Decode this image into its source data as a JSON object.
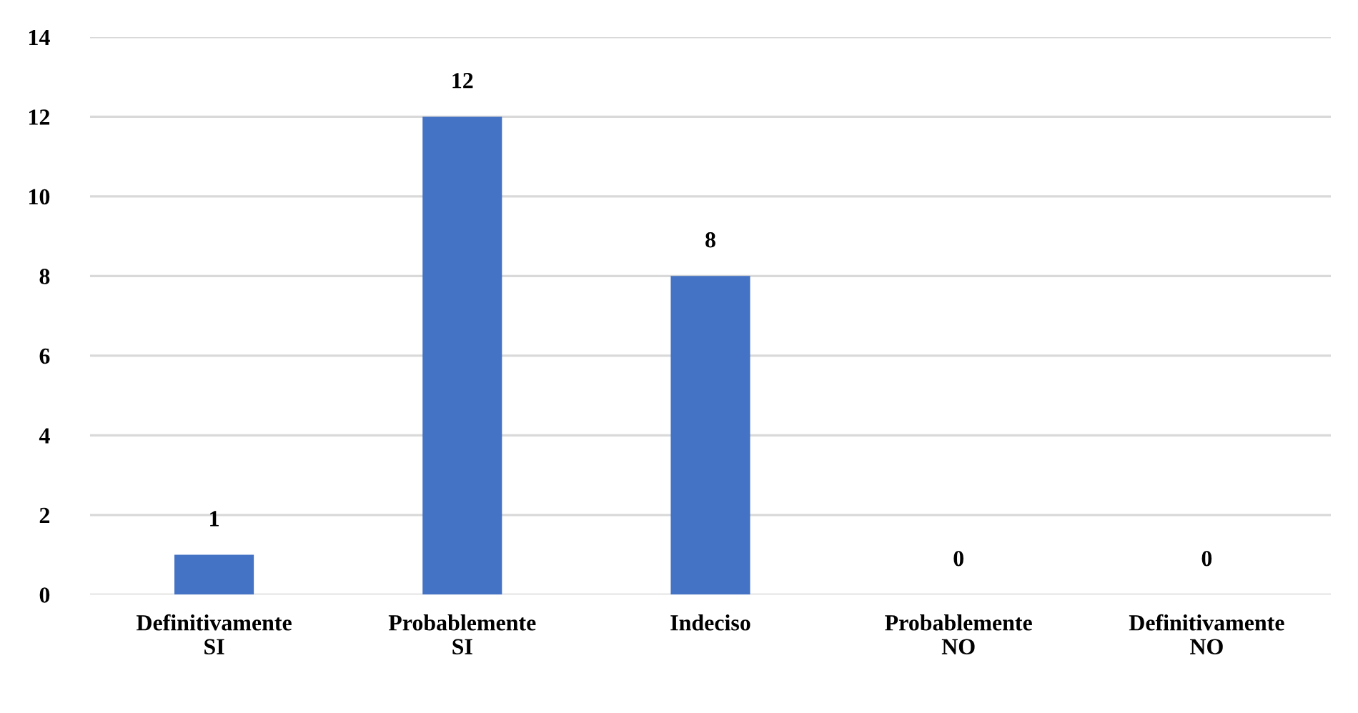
{
  "chart_data": {
    "type": "bar",
    "categories": [
      "Definitivamente SI",
      "Probablemente SI",
      "Indeciso",
      "Probablemente NO",
      "Definitivamente NO"
    ],
    "values": [
      1,
      12,
      8,
      0,
      0
    ],
    "color": "#4472c4",
    "ylim": [
      0,
      14
    ],
    "yticks": [
      0,
      2,
      4,
      6,
      8,
      10,
      12,
      14
    ],
    "grid": "y",
    "data_labels": true
  }
}
